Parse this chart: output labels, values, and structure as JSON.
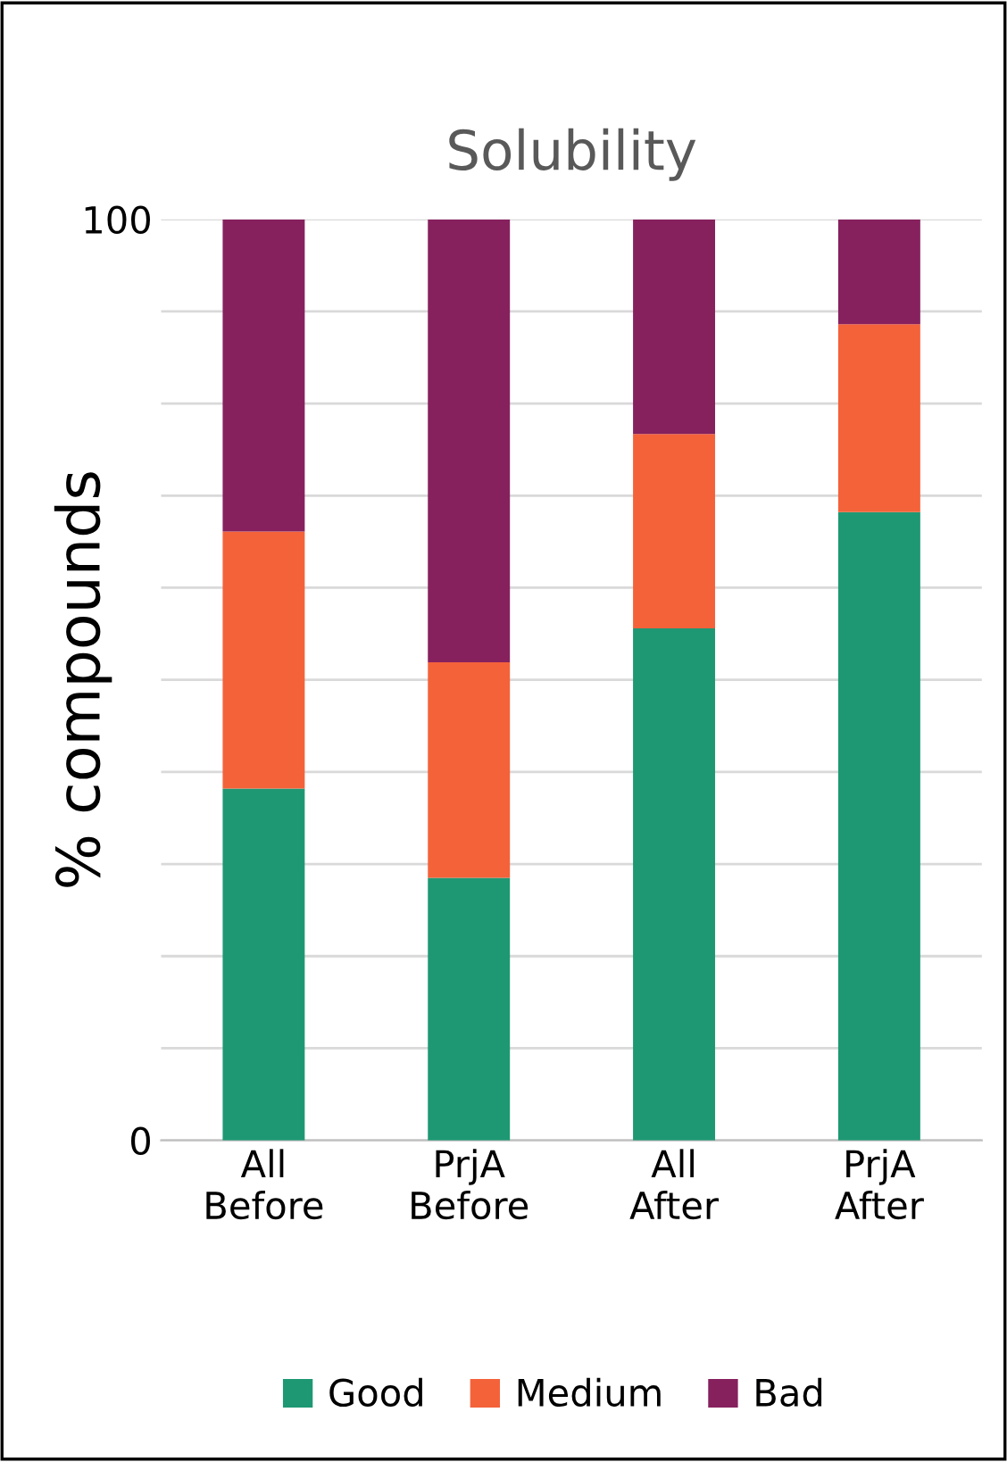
{
  "chart_data": {
    "type": "bar",
    "title": "Solubility",
    "ylabel": "% compounds",
    "categories": [
      "All\nBefore",
      "PrjA\nBefore",
      "All\nAfter",
      "PrjA\nAfter"
    ],
    "stacked": true,
    "series": [
      {
        "name": "Good",
        "color": "#1e9873",
        "values": [
          38.2,
          28.5,
          55.6,
          68.2
        ]
      },
      {
        "name": "Medium",
        "color": "#f4623a",
        "values": [
          27.9,
          23.4,
          21.1,
          20.4
        ]
      },
      {
        "name": "Bad",
        "color": "#86215e",
        "values": [
          33.9,
          48.1,
          23.3,
          11.4
        ]
      }
    ],
    "ylim": [
      0,
      100
    ],
    "yticks": [
      0,
      {
        "value": 10,
        "label": null
      },
      {
        "value": 20,
        "label": null
      },
      {
        "value": 30,
        "label": null
      },
      {
        "value": 40,
        "label": null
      },
      {
        "value": 50,
        "label": null
      },
      {
        "value": 60,
        "label": null
      },
      {
        "value": 70,
        "label": null
      },
      {
        "value": 80,
        "label": null
      },
      {
        "value": 90,
        "label": null
      },
      100
    ],
    "grid": "y",
    "legend": "bottom"
  }
}
